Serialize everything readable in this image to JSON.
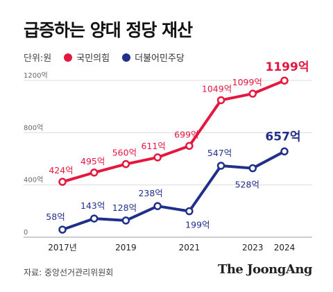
{
  "header": {
    "title": "급증하는 양대 정당 재산"
  },
  "legend": {
    "unit_label": "단위:원",
    "items": [
      {
        "name": "국민의힘",
        "color": "#e5173f"
      },
      {
        "name": "더불어민주당",
        "color": "#1f2f8a"
      }
    ]
  },
  "footer": {
    "source": "자료: 중앙선거관리위원회",
    "logo": "The JoongAng"
  },
  "chart_data": {
    "type": "line",
    "x": [
      2017,
      2018,
      2019,
      2020,
      2021,
      2022,
      2023,
      2024
    ],
    "x_tick_labels": [
      "2017년",
      "",
      "2019",
      "",
      "2021",
      "",
      "2023",
      "2024"
    ],
    "ylim": [
      0,
      1300
    ],
    "y_ticks": [
      0,
      400,
      800,
      1200
    ],
    "y_tick_labels": [
      "0",
      "400억",
      "800억",
      "1200억"
    ],
    "grid": true,
    "series": [
      {
        "name": "국민의힘",
        "color": "#e5173f",
        "values": [
          424,
          495,
          560,
          611,
          699,
          1049,
          1099,
          1199
        ],
        "labels": [
          "424억",
          "495억",
          "560억",
          "611억",
          "699억",
          "1049억",
          "1099억",
          "1199억"
        ]
      },
      {
        "name": "더불어민주당",
        "color": "#1f2f8a",
        "values": [
          58,
          143,
          128,
          238,
          199,
          547,
          528,
          657
        ],
        "labels": [
          "58억",
          "143억",
          "128억",
          "238억",
          "199억",
          "547억",
          "528억",
          "657억"
        ]
      }
    ]
  }
}
